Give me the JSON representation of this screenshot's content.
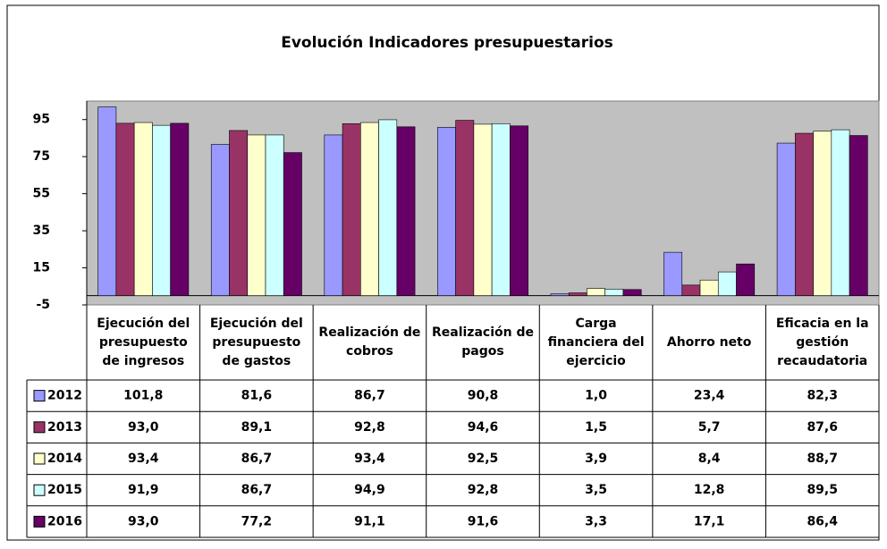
{
  "chart_data": {
    "type": "bar",
    "title": "Evolución Indicadores presupuestarios",
    "categories": [
      "Ejecución del presupuesto de ingresos",
      "Ejecución del presupuesto de gastos",
      "Realización de cobros",
      "Realización de pagos",
      "Carga financiera del ejercicio",
      "Ahorro neto",
      "Eficacia en la gestión recaudatoria"
    ],
    "series": [
      {
        "name": "2012",
        "color": "#9999ff",
        "values": [
          101.8,
          81.6,
          86.7,
          90.8,
          1.0,
          23.4,
          82.3
        ],
        "value_labels": [
          "101,8",
          "81,6",
          "86,7",
          "90,8",
          "1,0",
          "23,4",
          "82,3"
        ]
      },
      {
        "name": "2013",
        "color": "#993366",
        "values": [
          93.0,
          89.1,
          92.8,
          94.6,
          1.5,
          5.7,
          87.6
        ],
        "value_labels": [
          "93,0",
          "89,1",
          "92,8",
          "94,6",
          "1,5",
          "5,7",
          "87,6"
        ]
      },
      {
        "name": "2014",
        "color": "#ffffcc",
        "values": [
          93.4,
          86.7,
          93.4,
          92.5,
          3.9,
          8.4,
          88.7
        ],
        "value_labels": [
          "93,4",
          "86,7",
          "93,4",
          "92,5",
          "3,9",
          "8,4",
          "88,7"
        ]
      },
      {
        "name": "2015",
        "color": "#ccffff",
        "values": [
          91.9,
          86.7,
          94.9,
          92.8,
          3.5,
          12.8,
          89.5
        ],
        "value_labels": [
          "91,9",
          "86,7",
          "94,9",
          "92,8",
          "3,5",
          "12,8",
          "89,5"
        ]
      },
      {
        "name": "2016",
        "color": "#660066",
        "values": [
          93.0,
          77.2,
          91.1,
          91.6,
          3.3,
          17.1,
          86.4
        ],
        "value_labels": [
          "93,0",
          "77,2",
          "91,1",
          "91,6",
          "3,3",
          "17,1",
          "86,4"
        ]
      }
    ],
    "ylim": [
      -5,
      105
    ],
    "yticks": [
      -5,
      15,
      35,
      55,
      75,
      95
    ],
    "plot_background": "#c0c0c0"
  }
}
